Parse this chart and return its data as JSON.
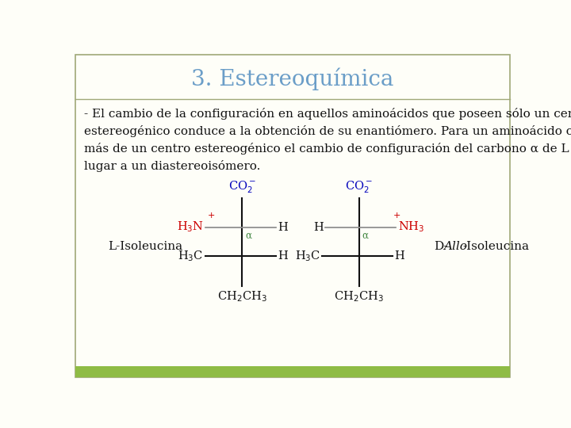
{
  "title": "3. Estereoquímica",
  "title_color": "#6b9ec8",
  "title_fontsize": 20,
  "body_text": "- El cambio de la configuración en aquellos aminoácidos que poseen sólo un centro\nestereogénico conduce a la obtención de su enantiómero. Para un aminoácido con\nmás de un centro estereogénico el cambio de configuración del carbono α de L a D da\nlugar a un diastereoisómero.",
  "body_fontsize": 11,
  "body_color": "#111111",
  "background_color": "#fefef8",
  "border_color": "#a0a878",
  "bottom_bar_color": "#8fbc45",
  "label_L": "L-Isoleucina",
  "label_fontsize": 11,
  "label_color": "#111111",
  "co2_color": "#0000bb",
  "nh3_color": "#cc0000",
  "alpha_color": "#448844",
  "line_color": "#111111",
  "gray_line_color": "#888888"
}
